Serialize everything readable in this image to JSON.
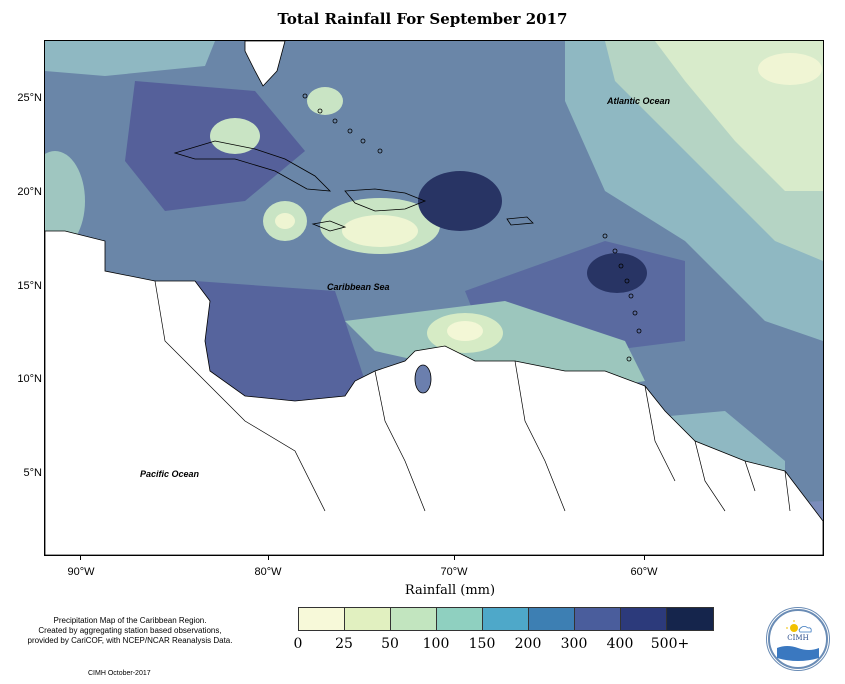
{
  "title": "Total Rainfall For September 2017",
  "map_labels": {
    "atlantic": "Atlantic Ocean",
    "caribbean": "Caribbean Sea",
    "pacific": "Pacific Ocean"
  },
  "axes": {
    "y_ticks": [
      "25°N",
      "20°N",
      "15°N",
      "10°N",
      "5°N"
    ],
    "x_ticks": [
      "90°W",
      "80°W",
      "70°W",
      "60°W"
    ],
    "x_title": "Rainfall (mm)"
  },
  "legend": {
    "labels": [
      "0",
      "25",
      "50",
      "100",
      "150",
      "200",
      "300",
      "400",
      "500+"
    ],
    "colors": [
      "#f7f9d9",
      "#e1f0c0",
      "#c2e5bf",
      "#8fd0c0",
      "#4ea8c9",
      "#3d7fb3",
      "#4a5d9c",
      "#2c3a7b",
      "#15254c"
    ]
  },
  "caption": {
    "line1": "Precipitation Map of the Caribbean Region.",
    "line2": "Created by aggregating station based observations,",
    "line3": "provided by CariCOF, with NCEP/NCAR Reanalysis Data."
  },
  "credit": "CIMH October-2017",
  "logo": {
    "name": "CIMH",
    "colors": {
      "ring": "#6a8cb5",
      "sun": "#f2c200",
      "wave": "#3a78c0"
    }
  },
  "map_colors": {
    "base": "#6a86a8",
    "ocean_light": "#9bc3c3",
    "ocean_pale": "#cfe3c8",
    "dark": "#4a5a94",
    "darkest": "#1e2a4f",
    "land": "#ffffff"
  }
}
